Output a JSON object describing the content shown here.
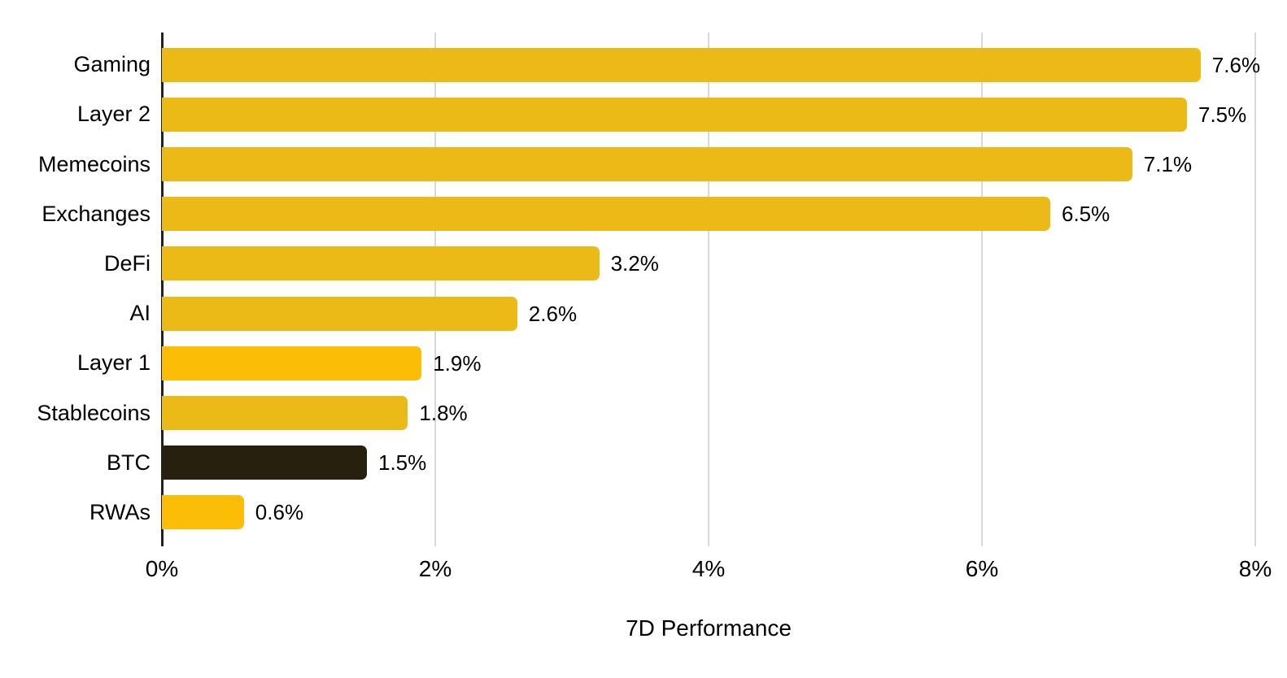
{
  "chart_data": {
    "type": "bar",
    "orientation": "horizontal",
    "title": "",
    "xlabel": "7D Performance",
    "ylabel": "",
    "categories": [
      "Gaming",
      "Layer 2",
      "Memecoins",
      "Exchanges",
      "DeFi",
      "AI",
      "Layer 1",
      "Stablecoins",
      "BTC",
      "RWAs"
    ],
    "values": [
      7.6,
      7.5,
      7.1,
      6.5,
      3.2,
      2.6,
      1.9,
      1.8,
      1.5,
      0.6
    ],
    "value_labels": [
      "7.6%",
      "7.5%",
      "7.1%",
      "6.5%",
      "3.2%",
      "2.6%",
      "1.9%",
      "1.8%",
      "1.5%",
      "0.6%"
    ],
    "bar_colors": [
      "#ECBA16",
      "#ECBA16",
      "#ECBA16",
      "#ECBA16",
      "#ECBA16",
      "#ECBA16",
      "#FBBD05",
      "#ECBA16",
      "#27200E",
      "#FBBD05"
    ],
    "xlim": [
      0,
      8
    ],
    "x_ticks": [
      "0%",
      "2%",
      "4%",
      "6%",
      "8%"
    ],
    "x_tick_values": [
      0,
      2,
      4,
      6,
      8
    ],
    "grid": true,
    "gridline_values": [
      2,
      4,
      6,
      8
    ],
    "legend": false,
    "colors": {
      "gold": "#ECBA16",
      "bright_yellow": "#FBBD05",
      "dark_btc": "#27200E",
      "gridline": "#D8D8D8",
      "axis": "#212121",
      "text": "#000000",
      "background": "#FFFFFF"
    }
  }
}
